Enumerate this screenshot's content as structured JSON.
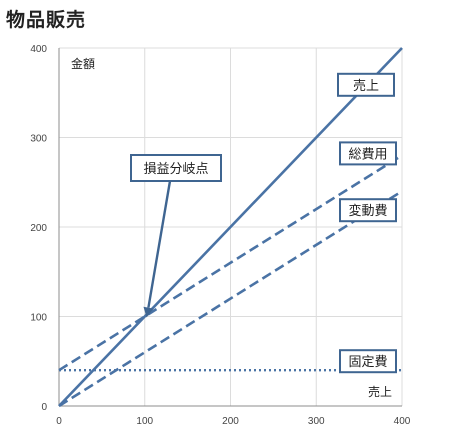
{
  "page": {
    "title": "物品販売"
  },
  "chart_data": {
    "type": "line",
    "title": "物品販売",
    "ylabel": "金額",
    "xlabel": "売上",
    "xlim": [
      0,
      400
    ],
    "ylim": [
      0,
      400
    ],
    "x_ticks": [
      0,
      100,
      200,
      300,
      400
    ],
    "y_ticks": [
      0,
      100,
      200,
      300,
      400
    ],
    "grid": true,
    "series": [
      {
        "name": "売上",
        "style": "solid",
        "color": "#4a73a5",
        "x": [
          0,
          400
        ],
        "y": [
          0,
          400
        ]
      },
      {
        "name": "総費用",
        "style": "dashed",
        "color": "#4a73a5",
        "x": [
          0,
          400
        ],
        "y": [
          40,
          280
        ]
      },
      {
        "name": "変動費",
        "style": "dashed",
        "color": "#4a73a5",
        "x": [
          0,
          400
        ],
        "y": [
          0,
          240
        ]
      },
      {
        "name": "固定費",
        "style": "dotted",
        "color": "#4a73a5",
        "x": [
          0,
          400
        ],
        "y": [
          40,
          40
        ]
      }
    ],
    "annotations": [
      {
        "text": "損益分岐点",
        "x": 100,
        "y": 100
      }
    ]
  }
}
